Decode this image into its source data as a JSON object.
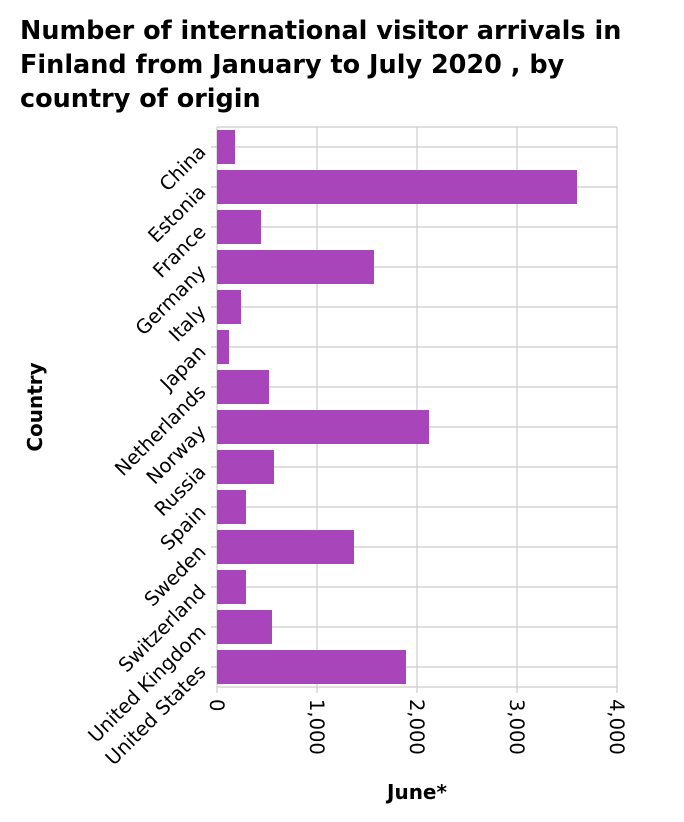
{
  "chart_data": {
    "type": "bar",
    "orientation": "horizontal",
    "title": "Number of international visitor arrivals in Finland from January to July 2020 , by country of origin",
    "xlabel": "June*",
    "ylabel": "Country",
    "categories": [
      "China",
      "Estonia",
      "France",
      "Germany",
      "Italy",
      "Japan",
      "Netherlands",
      "Norway",
      "Russia",
      "Spain",
      "Sweden",
      "Switzerland",
      "United Kingdom",
      "United States"
    ],
    "values": [
      180,
      3600,
      440,
      1570,
      240,
      120,
      520,
      2120,
      570,
      290,
      1370,
      290,
      550,
      1890
    ],
    "xlim": [
      0,
      4000
    ],
    "xticks": [
      0,
      1000,
      2000,
      3000,
      4000
    ],
    "xtick_labels": [
      "0",
      "1,000",
      "2,000",
      "3,000",
      "4,000"
    ],
    "grid": true,
    "colors": {
      "bar": "#a845ba",
      "grid": "#cccccc"
    }
  }
}
